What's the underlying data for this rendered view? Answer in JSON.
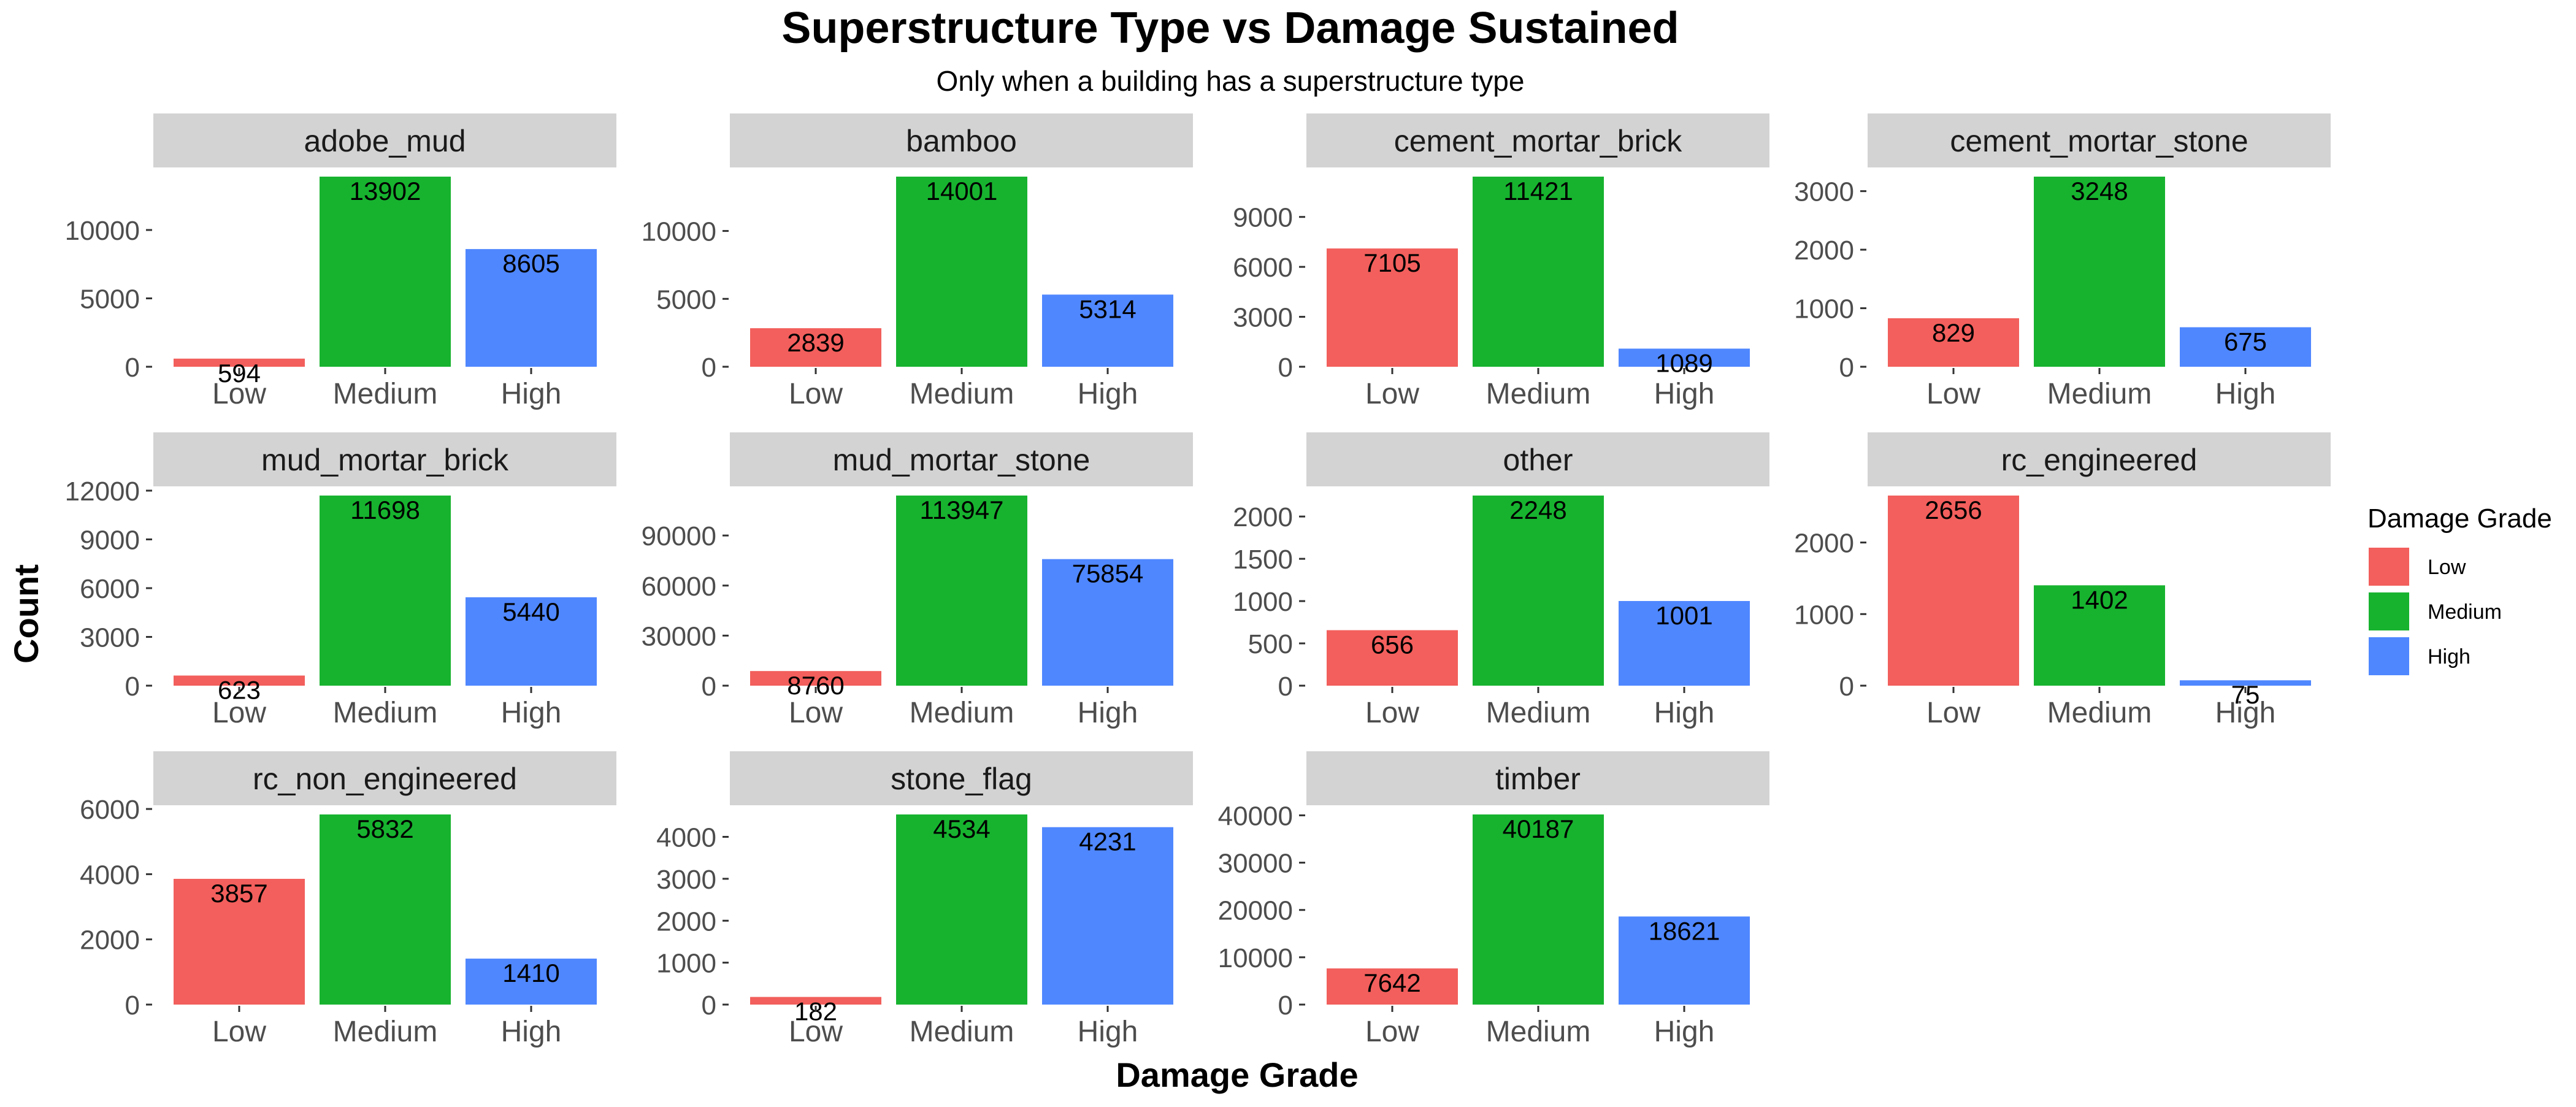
{
  "figure": {
    "title": "Superstructure Type vs Damage Sustained",
    "subtitle": "Only when a building has a superstructure type",
    "xlabel": "Damage Grade",
    "ylabel": "Count"
  },
  "legend": {
    "title": "Damage Grade",
    "placement": "right",
    "entries": [
      {
        "label": "Low",
        "color": "#f25f5c"
      },
      {
        "label": "Medium",
        "color": "#17b32f"
      },
      {
        "label": "High",
        "color": "#4f87ff"
      }
    ]
  },
  "chart_data": {
    "type": "bar",
    "layout": "faceted",
    "categories": [
      "Low",
      "Medium",
      "High"
    ],
    "colors": {
      "Low": "#f25f5c",
      "Medium": "#17b32f",
      "High": "#4f87ff"
    },
    "grid": false,
    "panels": [
      {
        "title": "adobe_mud",
        "values": [
          594,
          13902,
          8605
        ],
        "ylim": [
          0,
          13902
        ],
        "ticks": [
          0,
          5000,
          10000
        ],
        "tick_labels": [
          "0",
          "5000",
          "10000"
        ]
      },
      {
        "title": "bamboo",
        "values": [
          2839,
          14001,
          5314
        ],
        "ylim": [
          0,
          14001
        ],
        "ticks": [
          0,
          5000,
          10000
        ],
        "tick_labels": [
          "0",
          "5000",
          "10000"
        ]
      },
      {
        "title": "cement_mortar_brick",
        "values": [
          7105,
          11421,
          1089
        ],
        "ylim": [
          0,
          11421
        ],
        "ticks": [
          0,
          3000,
          6000,
          9000
        ],
        "tick_labels": [
          "0",
          "3000",
          "6000",
          "9000"
        ]
      },
      {
        "title": "cement_mortar_stone",
        "values": [
          829,
          3248,
          675
        ],
        "ylim": [
          0,
          3248
        ],
        "ticks": [
          0,
          1000,
          2000,
          3000
        ],
        "tick_labels": [
          "0",
          "1000",
          "2000",
          "3000"
        ]
      },
      {
        "title": "mud_mortar_brick",
        "values": [
          623,
          11698,
          5440
        ],
        "ylim": [
          0,
          11698
        ],
        "ticks": [
          0,
          3000,
          6000,
          9000,
          12000
        ],
        "tick_labels": [
          "0",
          "3000",
          "6000",
          "9000",
          "12000"
        ]
      },
      {
        "title": "mud_mortar_stone",
        "values": [
          8760,
          113947,
          75854
        ],
        "ylim": [
          0,
          113947
        ],
        "ticks": [
          0,
          30000,
          60000,
          90000
        ],
        "tick_labels": [
          "0",
          "30000",
          "60000",
          "90000"
        ]
      },
      {
        "title": "other",
        "values": [
          656,
          2248,
          1001
        ],
        "ylim": [
          0,
          2248
        ],
        "ticks": [
          0,
          500,
          1000,
          1500,
          2000
        ],
        "tick_labels": [
          "0",
          "500",
          "1000",
          "1500",
          "2000"
        ]
      },
      {
        "title": "rc_engineered",
        "values": [
          2656,
          1402,
          75
        ],
        "ylim": [
          0,
          2656
        ],
        "ticks": [
          0,
          1000,
          2000
        ],
        "tick_labels": [
          "0",
          "1000",
          "2000"
        ]
      },
      {
        "title": "rc_non_engineered",
        "values": [
          3857,
          5832,
          1410
        ],
        "ylim": [
          0,
          5832
        ],
        "ticks": [
          0,
          2000,
          4000,
          6000
        ],
        "tick_labels": [
          "0",
          "2000",
          "4000",
          "6000"
        ]
      },
      {
        "title": "stone_flag",
        "values": [
          182,
          4534,
          4231
        ],
        "ylim": [
          0,
          4534
        ],
        "ticks": [
          0,
          1000,
          2000,
          3000,
          4000
        ],
        "tick_labels": [
          "0",
          "1000",
          "2000",
          "3000",
          "4000"
        ]
      },
      {
        "title": "timber",
        "values": [
          7642,
          40187,
          18621
        ],
        "ylim": [
          0,
          40187
        ],
        "ticks": [
          0,
          10000,
          20000,
          30000,
          40000
        ],
        "tick_labels": [
          "0",
          "10000",
          "20000",
          "30000",
          "40000"
        ]
      }
    ]
  }
}
